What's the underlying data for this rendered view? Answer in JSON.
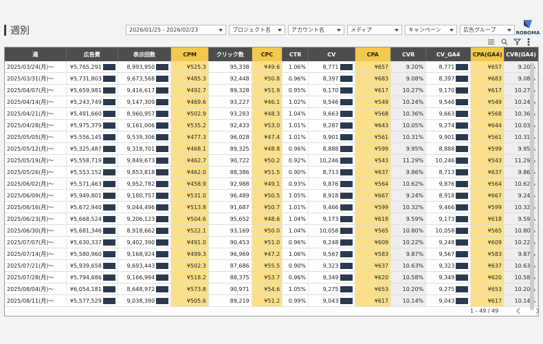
{
  "header": {
    "title": "週別",
    "logo": "ROBOMA"
  },
  "filters": [
    "2026/01/25 - 2026/02/23",
    "プロジェクト名",
    "アカウント名",
    "メディア",
    "キャンペーン",
    "広告グループ"
  ],
  "table": {
    "columns": [
      "週",
      "広告費",
      "表示回数",
      "CPM",
      "クリック数",
      "CPC",
      "CTR",
      "CV",
      "CPA",
      "CVR",
      "CV_GA4",
      "CPA(GA4)",
      "CVR(GA4)"
    ],
    "rows": [
      [
        "2025/03/24(月)～",
        "¥5,765,291",
        "8,993,950",
        "¥525.3",
        "95,338",
        "¥49.6",
        "1.06%",
        "8,771",
        "¥657",
        "9.20%",
        "8,771",
        "¥657",
        "9.20%"
      ],
      [
        "2025/03/31(月)～",
        "¥5,731,803",
        "9,673,568",
        "¥485.3",
        "92,448",
        "¥50.8",
        "0.96%",
        "8,397",
        "¥683",
        "9.08%",
        "8,397",
        "¥683",
        "9.08%"
      ],
      [
        "2025/04/07(月)～",
        "¥5,659,981",
        "9,416,617",
        "¥492.7",
        "89,328",
        "¥51.9",
        "0.95%",
        "9,170",
        "¥617",
        "10.27%",
        "9,170",
        "¥617",
        "10.27%"
      ],
      [
        "2025/04/14(月)～",
        "¥5,243,749",
        "9,147,309",
        "¥469.6",
        "93,227",
        "¥46.1",
        "1.02%",
        "9,546",
        "¥549",
        "10.24%",
        "9,546",
        "¥549",
        "10.24%"
      ],
      [
        "2025/04/21(月)～",
        "¥5,491,660",
        "8,960,957",
        "¥502.9",
        "93,283",
        "¥48.3",
        "1.04%",
        "9,663",
        "¥568",
        "10.36%",
        "9,663",
        "¥568",
        "10.36%"
      ],
      [
        "2025/04/28(月)～",
        "¥5,975,379",
        "9,161,006",
        "¥535.2",
        "92,433",
        "¥53.0",
        "1.01%",
        "9,287",
        "¥643",
        "10.05%",
        "9,274",
        "¥644",
        "10.03%"
      ],
      [
        "2025/05/05(月)～",
        "¥5,556,145",
        "9,539,306",
        "¥477.3",
        "96,028",
        "¥47.4",
        "1.01%",
        "9,901",
        "¥561",
        "10.31%",
        "9,901",
        "¥561",
        "10.31%"
      ],
      [
        "2025/05/12(月)～",
        "¥5,325,487",
        "9,318,701",
        "¥468.1",
        "89,325",
        "¥48.8",
        "0.96%",
        "8,888",
        "¥599",
        "9.95%",
        "8,888",
        "¥599",
        "9.95%"
      ],
      [
        "2025/05/19(月)～",
        "¥5,558,719",
        "9,849,673",
        "¥462.7",
        "90,722",
        "¥50.2",
        "0.92%",
        "10,246",
        "¥543",
        "11.29%",
        "10,246",
        "¥543",
        "11.29%"
      ],
      [
        "2025/05/26(月)～",
        "¥5,553,152",
        "9,853,818",
        "¥462.0",
        "88,386",
        "¥51.5",
        "0.90%",
        "8,713",
        "¥637",
        "9.86%",
        "8,713",
        "¥637",
        "9.86%"
      ],
      [
        "2025/06/02(月)～",
        "¥5,571,463",
        "9,952,782",
        "¥458.9",
        "92,988",
        "¥49.1",
        "0.93%",
        "9,876",
        "¥564",
        "10.62%",
        "9,876",
        "¥564",
        "10.62%"
      ],
      [
        "2025/06/09(月)～",
        "¥5,949,801",
        "9,180,757",
        "¥531.0",
        "96,489",
        "¥50.5",
        "1.05%",
        "8,918",
        "¥667",
        "9.24%",
        "8,918",
        "¥667",
        "9.24%"
      ],
      [
        "2025/06/16(月)～",
        "¥5,672,940",
        "9,044,496",
        "¥513.8",
        "91,687",
        "¥50.7",
        "1.01%",
        "9,466",
        "¥599",
        "10.32%",
        "9,466",
        "¥599",
        "10.32%"
      ],
      [
        "2025/06/23(月)～",
        "¥5,668,524",
        "9,206,123",
        "¥504.6",
        "95,652",
        "¥48.6",
        "1.04%",
        "9,173",
        "¥618",
        "9.59%",
        "9,173",
        "¥618",
        "9.59%"
      ],
      [
        "2025/06/30(月)～",
        "¥5,681,346",
        "8,918,662",
        "¥522.1",
        "93,169",
        "¥50.0",
        "1.04%",
        "10,058",
        "¥565",
        "10.80%",
        "10,058",
        "¥565",
        "10.80%"
      ],
      [
        "2025/07/07(月)～",
        "¥5,630,337",
        "9,402,390",
        "¥491.0",
        "90,453",
        "¥51.0",
        "0.96%",
        "9,248",
        "¥609",
        "10.22%",
        "9,248",
        "¥609",
        "10.22%"
      ],
      [
        "2025/07/14(月)～",
        "¥5,580,960",
        "9,168,924",
        "¥499.3",
        "96,969",
        "¥47.2",
        "1.06%",
        "9,567",
        "¥583",
        "9.87%",
        "9,567",
        "¥583",
        "9.87%"
      ],
      [
        "2025/07/21(月)～",
        "¥5,939,658",
        "9,693,443",
        "¥502.3",
        "87,686",
        "¥55.5",
        "0.90%",
        "9,323",
        "¥637",
        "10.63%",
        "9,323",
        "¥637",
        "10.63%"
      ],
      [
        "2025/07/28(月)～",
        "¥5,794,686",
        "9,166,994",
        "¥518.2",
        "88,375",
        "¥53.7",
        "0.96%",
        "9,349",
        "¥620",
        "10.58%",
        "9,349",
        "¥620",
        "10.58%"
      ],
      [
        "2025/08/04(月)～",
        "¥6,054,181",
        "8,648,972",
        "¥573.8",
        "90,971",
        "¥54.6",
        "1.05%",
        "9,275",
        "¥653",
        "10.20%",
        "9,275",
        "¥653",
        "10.20%"
      ],
      [
        "2025/08/11(月)～",
        "¥5,577,529",
        "9,038,390",
        "¥505.6",
        "89,219",
        "¥51.2",
        "0.99%",
        "9,043",
        "¥617",
        "10.14%",
        "9,043",
        "¥617",
        "10.14%"
      ]
    ]
  },
  "footer": {
    "pagination": "1 - 49 / 49"
  }
}
